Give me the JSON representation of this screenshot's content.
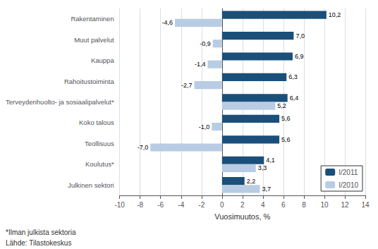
{
  "chart_data": {
    "type": "bar",
    "orientation": "horizontal",
    "categories": [
      "Julkinen sektori",
      "Koulutus*",
      "Teollisuus",
      "Koko talous",
      "Terveydenhuolto- ja sosiaalipalvelut*",
      "Rahoitustoiminta",
      "Kauppa",
      "Muut palvelut",
      "Rakentaminen"
    ],
    "series": [
      {
        "name": "I/2011",
        "color": "#1a4f7a",
        "values": [
          2.2,
          4.1,
          5.6,
          5.6,
          6.4,
          6.3,
          6.9,
          7.0,
          10.2
        ],
        "value_labels": [
          "2,2",
          "4,1",
          "5,6",
          "5,6",
          "6,4",
          "6,3",
          "6,9",
          "7,0",
          "10,2"
        ]
      },
      {
        "name": "I/2010",
        "color": "#b8cce4",
        "values": [
          3.7,
          3.3,
          -7.0,
          -1.0,
          5.2,
          -2.7,
          -1.4,
          -0.9,
          -4.6
        ],
        "value_labels": [
          "3,7",
          "3,3",
          "-7,0",
          "-1,0",
          "5,2",
          "-2,7",
          "-1,4",
          "-0,9",
          "-4,6"
        ]
      }
    ],
    "xlabel": "Vuosimuutos, %",
    "xlim": [
      -10,
      14
    ],
    "xticks": [
      -10,
      -8,
      -6,
      -4,
      -2,
      0,
      2,
      4,
      6,
      8,
      10,
      12,
      14
    ],
    "grid": true,
    "legend": "lower right",
    "data_labels": true,
    "annotations": [
      "*Ilman julkista sektoria",
      "Lähde: Tilastokeskus"
    ]
  }
}
